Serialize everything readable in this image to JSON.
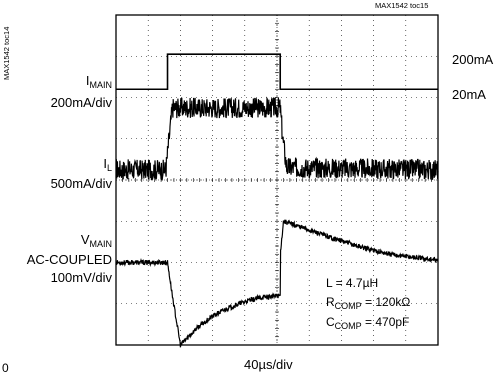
{
  "chart_data": {
    "type": "line",
    "id_top": "MAX1542 toc15",
    "id_side": "MAX1542 toc14",
    "xlabel": "40µs/div",
    "x_divisions": 10,
    "y_divisions": 8,
    "grid": true,
    "origin_label": "0",
    "channels": [
      {
        "name_main": "I",
        "name_sub": "MAIN",
        "scale": "200mA/div",
        "levels": [
          "200mA",
          "20mA"
        ],
        "x": [
          0,
          1.6,
          1.6,
          5.1,
          5.1,
          10
        ],
        "y": [
          0.2,
          0.2,
          1.05,
          1.05,
          0.2,
          0.2
        ]
      },
      {
        "name_main": "I",
        "name_sub": "L",
        "scale": "500mA/div",
        "x": [
          0,
          1.55,
          1.62,
          1.75,
          5.1,
          5.18,
          5.3,
          10
        ],
        "y": [
          0.25,
          0.25,
          0.8,
          1.75,
          1.75,
          1.0,
          0.3,
          0.25
        ],
        "ripple": 0.5
      },
      {
        "name_main": "V",
        "name_sub": "MAIN",
        "line2": "AC-COUPLED",
        "scale": "100mV/div",
        "x": [
          0,
          1.6,
          1.75,
          2.0,
          2.5,
          3.0,
          3.5,
          4.0,
          4.5,
          5.1,
          5.1,
          5.2,
          5.6,
          6.5,
          7.5,
          8.5,
          10
        ],
        "y": [
          0,
          0,
          -0.8,
          -2.0,
          -1.6,
          -1.3,
          -1.1,
          -0.95,
          -0.85,
          -0.8,
          0.2,
          1.0,
          0.9,
          0.65,
          0.4,
          0.2,
          0.05
        ],
        "ripple": 0.12
      }
    ]
  },
  "annotation": {
    "inductor": "L = 4.7µH",
    "rcomp_main": "R",
    "rcomp_sub": "COMP",
    "rcomp_val": " = 120kΩ",
    "ccomp_main": "C",
    "ccomp_sub": "COMP",
    "ccomp_val": " = 470pF"
  }
}
